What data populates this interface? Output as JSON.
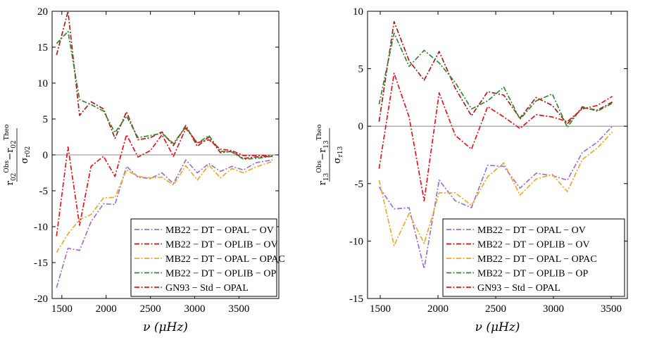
{
  "chart_data": [
    {
      "type": "line",
      "panel": "left",
      "xlabel": "ν (μHz)",
      "ylabel": "(r02^Obs − r02^Theo) / σ_r02",
      "ylabel_parts": {
        "numerator": "r",
        "sub": "02",
        "obs": "Obs",
        "theo": "Theo",
        "denominator": "σ",
        "den_sub": "r02"
      },
      "xlim": [
        1390,
        3950
      ],
      "ylim": [
        -20,
        20
      ],
      "xticks": [
        1500,
        2000,
        2500,
        3000,
        3500
      ],
      "yticks": [
        -20,
        -15,
        -10,
        -5,
        0,
        5,
        10,
        15,
        20
      ],
      "x": [
        1440,
        1570,
        1700,
        1830,
        1970,
        2100,
        2230,
        2360,
        2500,
        2630,
        2760,
        2900,
        3030,
        3160,
        3290,
        3420,
        3550,
        3690,
        3880
      ],
      "series": [
        {
          "name": "MB22 − DT − OPAL − OV",
          "color": "#9b6fd9",
          "values": [
            -18.5,
            -13,
            -13.3,
            -9.3,
            -6.8,
            -6.9,
            -1.6,
            -3.1,
            -3.3,
            -2.5,
            -4.0,
            -0.7,
            -2.5,
            -1.2,
            -2.3,
            -1.6,
            -2.1,
            -1.1,
            -0.7
          ]
        },
        {
          "name": "MB22 − DT − OPLIB − OV",
          "color": "#b31a1a",
          "values": [
            13.9,
            20,
            5.5,
            7.4,
            6.4,
            2.3,
            6.0,
            2.1,
            2.4,
            3.2,
            1.3,
            4.1,
            1.2,
            2.5,
            0.3,
            0.5,
            -0.5,
            -0.3,
            -0.2
          ]
        },
        {
          "name": "MB22 − DT − OPAL − OPAC",
          "color": "#f5a623",
          "values": [
            -13.6,
            -11,
            -9.0,
            -8.3,
            -6.0,
            -5.9,
            -2.1,
            -3.0,
            -3.2,
            -3.1,
            -4.2,
            -1.5,
            -3.5,
            -1.4,
            -3.2,
            -1.9,
            -2.5,
            -1.7,
            -0.9
          ]
        },
        {
          "name": "MB22 − DT − OPLIB − OP",
          "color": "#2e8b2e",
          "values": [
            15.5,
            17.2,
            7.7,
            7.0,
            6.1,
            3.1,
            5.4,
            2.4,
            2.7,
            3.0,
            1.6,
            3.9,
            1.6,
            2.7,
            0.5,
            0.4,
            -0.6,
            -0.5,
            -0.2
          ]
        },
        {
          "name": "GN93 − Std − OPAL",
          "color": "#e8141c",
          "values": [
            -11.3,
            1.1,
            -9.8,
            -1.6,
            -0.2,
            -3.0,
            2.8,
            -0.3,
            0.6,
            2.8,
            -0.2,
            3.7,
            1.7,
            2.1,
            0.8,
            0.6,
            -0.1,
            -0.1,
            -0.1
          ]
        }
      ]
    },
    {
      "type": "line",
      "panel": "right",
      "xlabel": "ν (μHz)",
      "ylabel": "(r13^Obs − r13^Theo) / σ_r13",
      "ylabel_parts": {
        "numerator": "r",
        "sub": "13",
        "obs": "Obs",
        "theo": "Theo",
        "denominator": "σ",
        "den_sub": "r13"
      },
      "xlim": [
        1390,
        3640
      ],
      "ylim": [
        -15,
        10
      ],
      "xticks": [
        1500,
        2000,
        2500,
        3000,
        3500
      ],
      "yticks": [
        -15,
        -10,
        -5,
        0,
        5,
        10
      ],
      "x": [
        1490,
        1620,
        1750,
        1880,
        2010,
        2150,
        2290,
        2430,
        2570,
        2710,
        2850,
        2990,
        3120,
        3250,
        3380,
        3510
      ],
      "series": [
        {
          "name": "MB22 − DT − OPAL − OV",
          "color": "#9b6fd9",
          "values": [
            -5.3,
            -7.2,
            -7.1,
            -12.4,
            -4.7,
            -6.5,
            -7.1,
            -3.4,
            -3.5,
            -5.4,
            -4.1,
            -4.3,
            -4.7,
            -2.3,
            -1.4,
            0.0
          ]
        },
        {
          "name": "MB22 − DT − OPLIB − OV",
          "color": "#b31a1a",
          "values": [
            0.4,
            9.1,
            5.7,
            4.0,
            6.5,
            3.3,
            0.9,
            3.0,
            2.7,
            0.7,
            2.5,
            1.8,
            0.2,
            1.6,
            1.4,
            2.1
          ]
        },
        {
          "name": "MB22 − DT − OPAL − OPAC",
          "color": "#f5a623",
          "values": [
            -4.7,
            -10.4,
            -7.6,
            -10.2,
            -5.8,
            -5.8,
            -6.9,
            -4.4,
            -3.2,
            -6.0,
            -4.6,
            -4.2,
            -5.7,
            -2.9,
            -1.9,
            -0.5
          ]
        },
        {
          "name": "MB22 − DT − OPLIB − OP",
          "color": "#2e8b2e",
          "values": [
            1.9,
            8.1,
            5.2,
            6.6,
            5.5,
            3.8,
            1.5,
            2.2,
            3.4,
            0.6,
            2.2,
            2.8,
            -0.1,
            1.7,
            1.3,
            2.0
          ]
        },
        {
          "name": "GN93 − Std − OPAL",
          "color": "#e8141c",
          "values": [
            -3.7,
            4.6,
            0.8,
            -6.5,
            2.9,
            -0.8,
            -2.0,
            1.7,
            0.8,
            -0.2,
            1.0,
            0.8,
            0.4,
            1.5,
            1.8,
            2.6
          ]
        }
      ]
    }
  ]
}
